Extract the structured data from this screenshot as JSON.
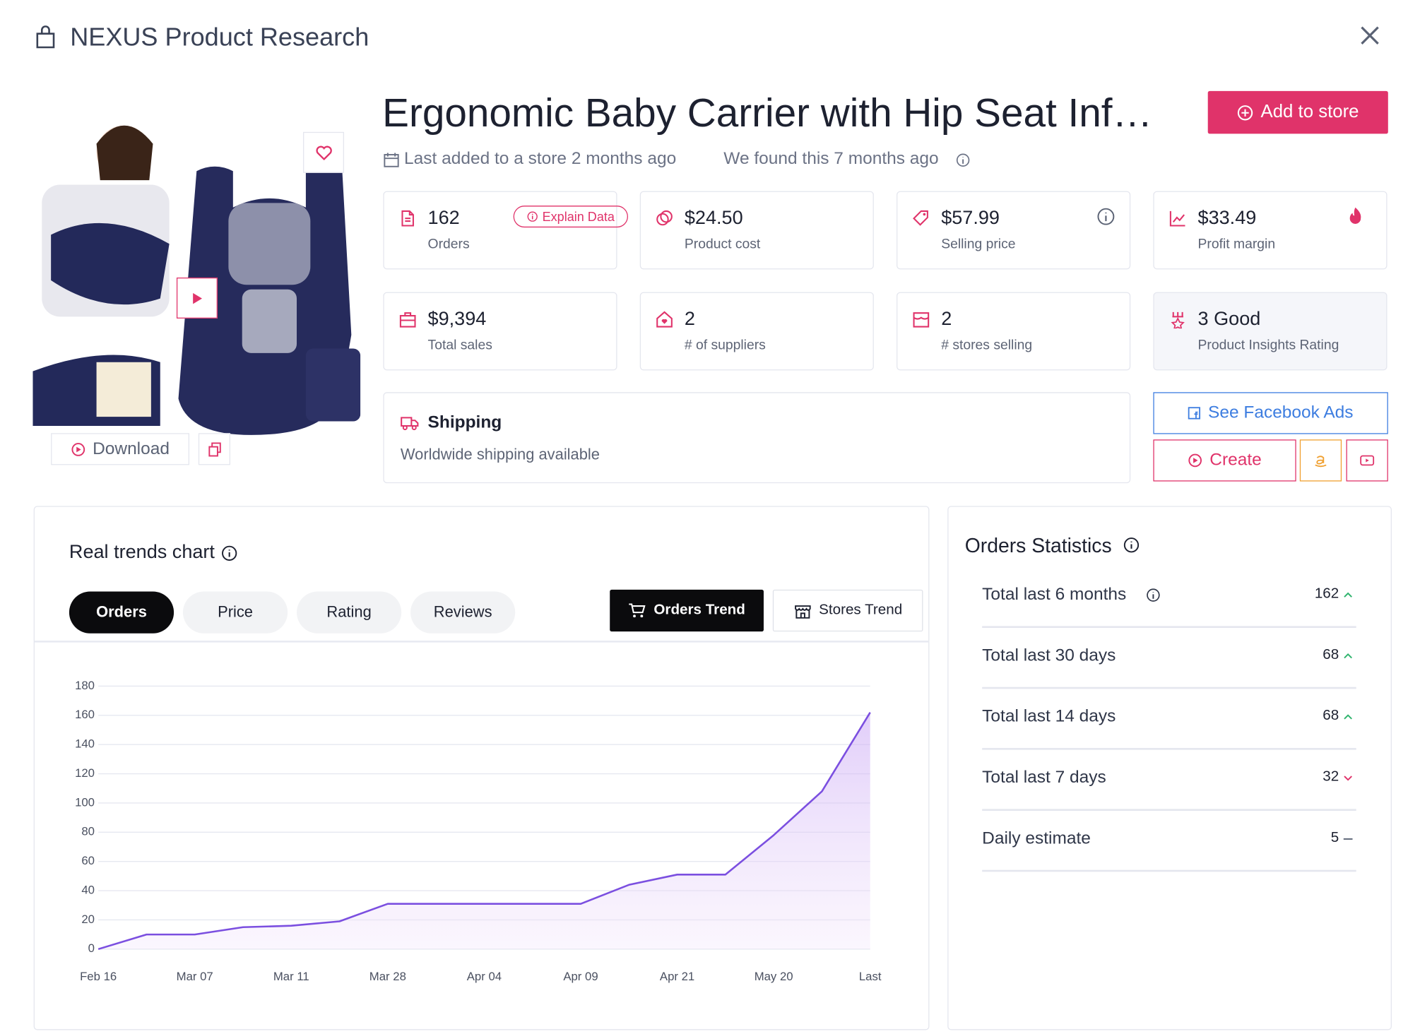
{
  "header": {
    "title": "NEXUS Product Research"
  },
  "product": {
    "title": "Ergonomic Baby Carrier with Hip Seat Inf…",
    "last_added": "Last added to a store 2 months ago",
    "found": "We found this 7 months ago",
    "add_button": "Add to store",
    "download": "Download"
  },
  "stats": [
    {
      "value": "162",
      "label": "Orders",
      "badge": "Explain Data"
    },
    {
      "value": "$24.50",
      "label": "Product cost"
    },
    {
      "value": "$57.99",
      "label": "Selling price"
    },
    {
      "value": "$33.49",
      "label": "Profit margin"
    },
    {
      "value": "$9,394",
      "label": "Total sales"
    },
    {
      "value": "2",
      "label": "# of suppliers"
    },
    {
      "value": "2",
      "label": "# stores selling"
    },
    {
      "value": "3 Good",
      "label": "Product Insights Rating"
    }
  ],
  "shipping": {
    "title": "Shipping",
    "text": "Worldwide shipping available"
  },
  "actions": {
    "facebook": "See Facebook Ads",
    "create": "Create"
  },
  "trends": {
    "title": "Real trends chart",
    "tabs": [
      "Orders",
      "Price",
      "Rating",
      "Reviews"
    ],
    "toggles": [
      "Orders Trend",
      "Stores Trend"
    ]
  },
  "chart_data": {
    "type": "area",
    "categories": [
      "Feb 16",
      null,
      "Mar 07",
      null,
      "Mar 11",
      null,
      "Mar 28",
      null,
      "Apr 04",
      null,
      "Apr 09",
      null,
      "Apr 21",
      null,
      "May 20",
      null,
      "Last"
    ],
    "values": [
      0,
      10,
      10,
      15,
      16,
      19,
      31,
      31,
      31,
      31,
      31,
      44,
      51,
      51,
      78,
      108,
      162
    ],
    "color": "#7b4fe0",
    "ylim": [
      0,
      180
    ],
    "yticks": [
      0,
      20,
      40,
      60,
      80,
      100,
      120,
      140,
      160,
      180
    ],
    "grid": true
  },
  "orders_statistics": {
    "title": "Orders Statistics",
    "rows": [
      {
        "label": "Total last 6 months",
        "value": 162,
        "trend": "up"
      },
      {
        "label": "Total last 30 days",
        "value": 68,
        "trend": "up"
      },
      {
        "label": "Total last 14 days",
        "value": 68,
        "trend": "up"
      },
      {
        "label": "Total last 7 days",
        "value": 32,
        "trend": "down"
      },
      {
        "label": "Daily estimate",
        "value": 5,
        "trend": "flat"
      }
    ]
  }
}
